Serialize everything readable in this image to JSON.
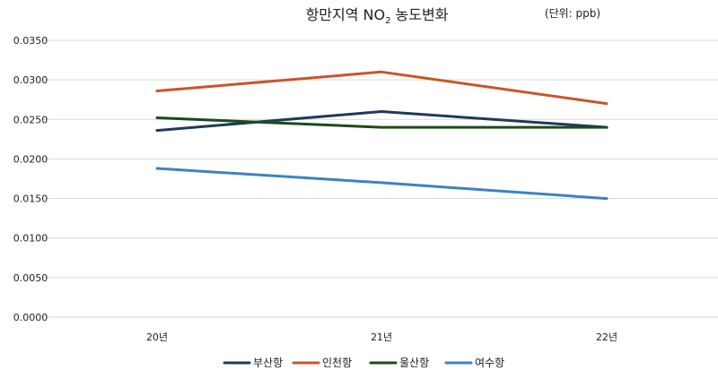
{
  "chart_data": {
    "type": "line",
    "title_main": "항만지역 NO",
    "title_subscript": "2",
    "title_end": " 농도변화",
    "unit": "(단위: ppb)",
    "categories": [
      "20년",
      "21년",
      "22년"
    ],
    "ylim": [
      0,
      0.035
    ],
    "ytick_values": [
      0,
      0.005,
      0.01,
      0.015,
      0.02,
      0.025,
      0.03,
      0.035
    ],
    "ytick_labels": [
      "0.0000",
      "0.0050",
      "0.0100",
      "0.0150",
      "0.0200",
      "0.0250",
      "0.0300",
      "0.0350"
    ],
    "grid": true,
    "legend_position": "bottom",
    "series": [
      {
        "name": "부산항",
        "color": "#1f3a5a",
        "values": [
          0.0236,
          0.026,
          0.024
        ]
      },
      {
        "name": "인천항",
        "color": "#c9552a",
        "values": [
          0.0286,
          0.031,
          0.027
        ]
      },
      {
        "name": "울산항",
        "color": "#1d4a1d",
        "values": [
          0.0252,
          0.024,
          0.024
        ]
      },
      {
        "name": "여수항",
        "color": "#3d82c4",
        "values": [
          0.0188,
          0.017,
          0.015
        ]
      }
    ]
  }
}
